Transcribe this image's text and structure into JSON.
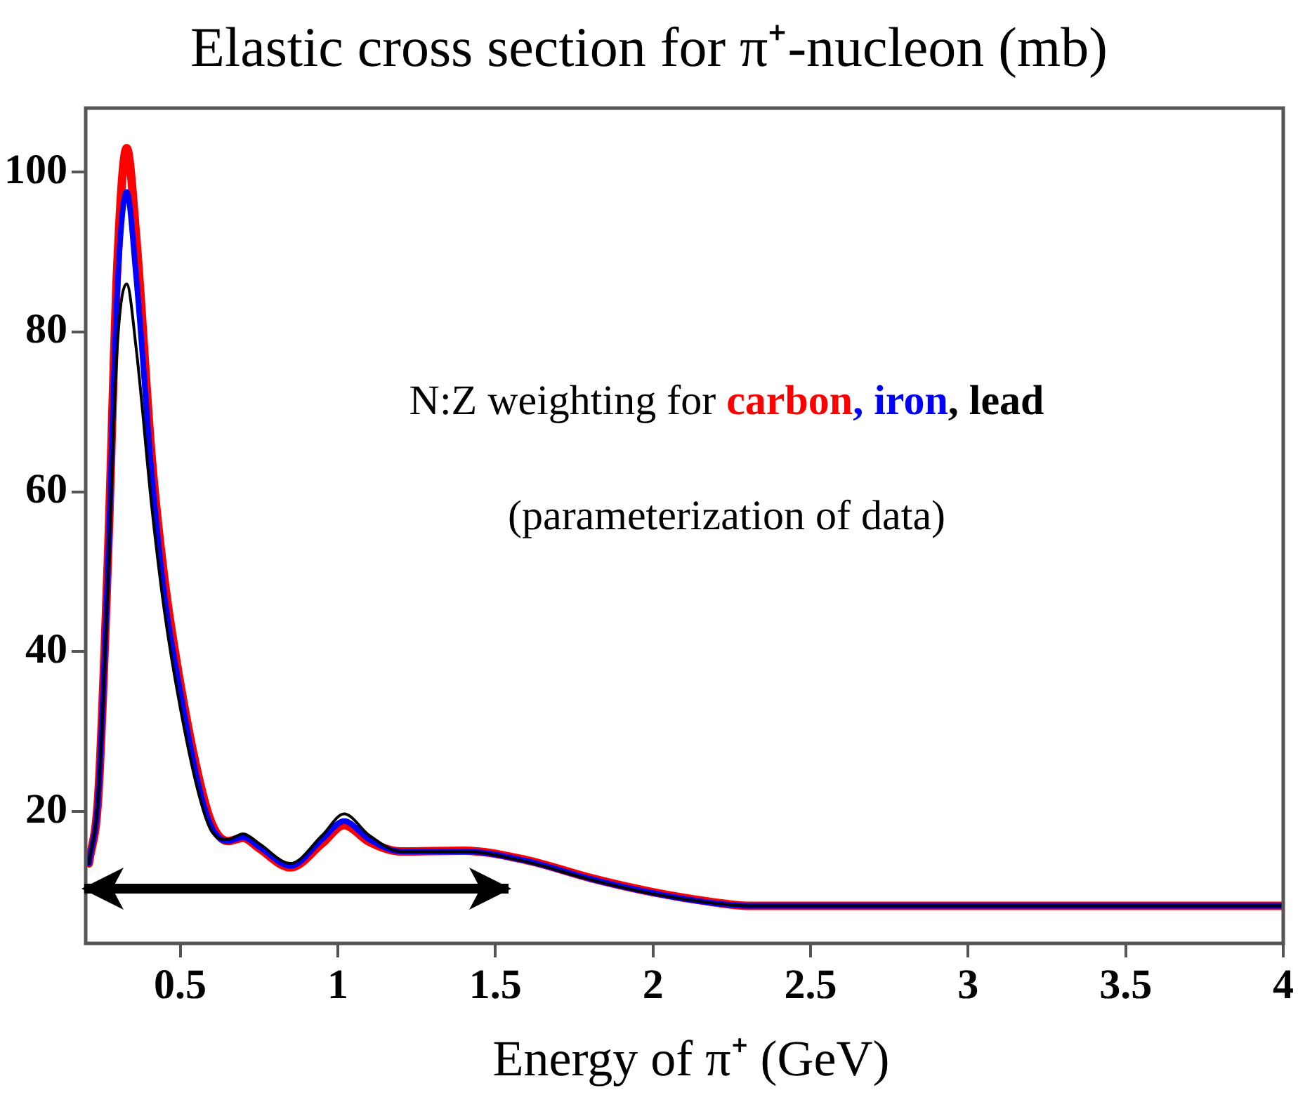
{
  "chart_data": {
    "type": "line",
    "title": "Elastic cross section for π⁺-nucleon (mb)",
    "xlabel": "Energy of π⁺ (GeV)",
    "annotations": [
      "N:Z weighting for",
      ",",
      ",",
      "(parameterization of data)"
    ],
    "x": [
      0.21,
      0.24,
      0.27,
      0.3,
      0.33,
      0.36,
      0.41,
      0.45,
      0.5,
      0.56,
      0.6,
      0.65,
      0.7,
      0.75,
      0.85,
      0.95,
      1.02,
      1.1,
      1.2,
      1.4,
      1.6,
      1.8,
      2.0,
      2.2,
      2.3,
      2.5,
      3,
      3.5,
      4
    ],
    "series": [
      {
        "name": "carbon",
        "color": "#ff0000",
        "values": [
          13.5,
          22,
          51,
          88,
          103,
          92,
          64,
          49,
          36,
          24,
          18.5,
          16.3,
          16.7,
          15.4,
          13,
          16,
          18.3,
          16.2,
          15,
          15.1,
          13.9,
          11.7,
          9.9,
          8.6,
          8.2,
          8.2,
          8.2,
          8.2,
          8.2
        ]
      },
      {
        "name": "iron",
        "color": "#0000ff",
        "values": [
          13.5,
          22,
          50,
          85,
          97.5,
          87,
          62,
          47,
          35,
          23,
          18,
          16.3,
          16.8,
          15.6,
          13.2,
          16.5,
          18.8,
          16.5,
          15,
          15,
          13.8,
          11.6,
          9.8,
          8.5,
          8.2,
          8.2,
          8.2,
          8.2,
          8.2
        ]
      },
      {
        "name": "lead",
        "color": "#000000",
        "values": [
          13.5,
          22,
          48,
          78,
          86,
          78,
          58,
          45,
          33,
          22,
          17.5,
          16.5,
          17.2,
          16,
          13.5,
          17,
          19.7,
          17,
          15,
          15,
          13.7,
          11.5,
          9.7,
          8.5,
          8.2,
          8.2,
          8.2,
          8.2,
          8.2
        ]
      }
    ],
    "xlim": [
      0.2,
      4
    ],
    "xticks": [
      0.5,
      1,
      1.5,
      2,
      2.5,
      3,
      3.5,
      4
    ],
    "ylim": [
      3.5,
      108
    ],
    "yticks": [
      20,
      40,
      60,
      80,
      100
    ],
    "grid": false,
    "legend": false,
    "marker": "none",
    "line_style": "solid"
  }
}
